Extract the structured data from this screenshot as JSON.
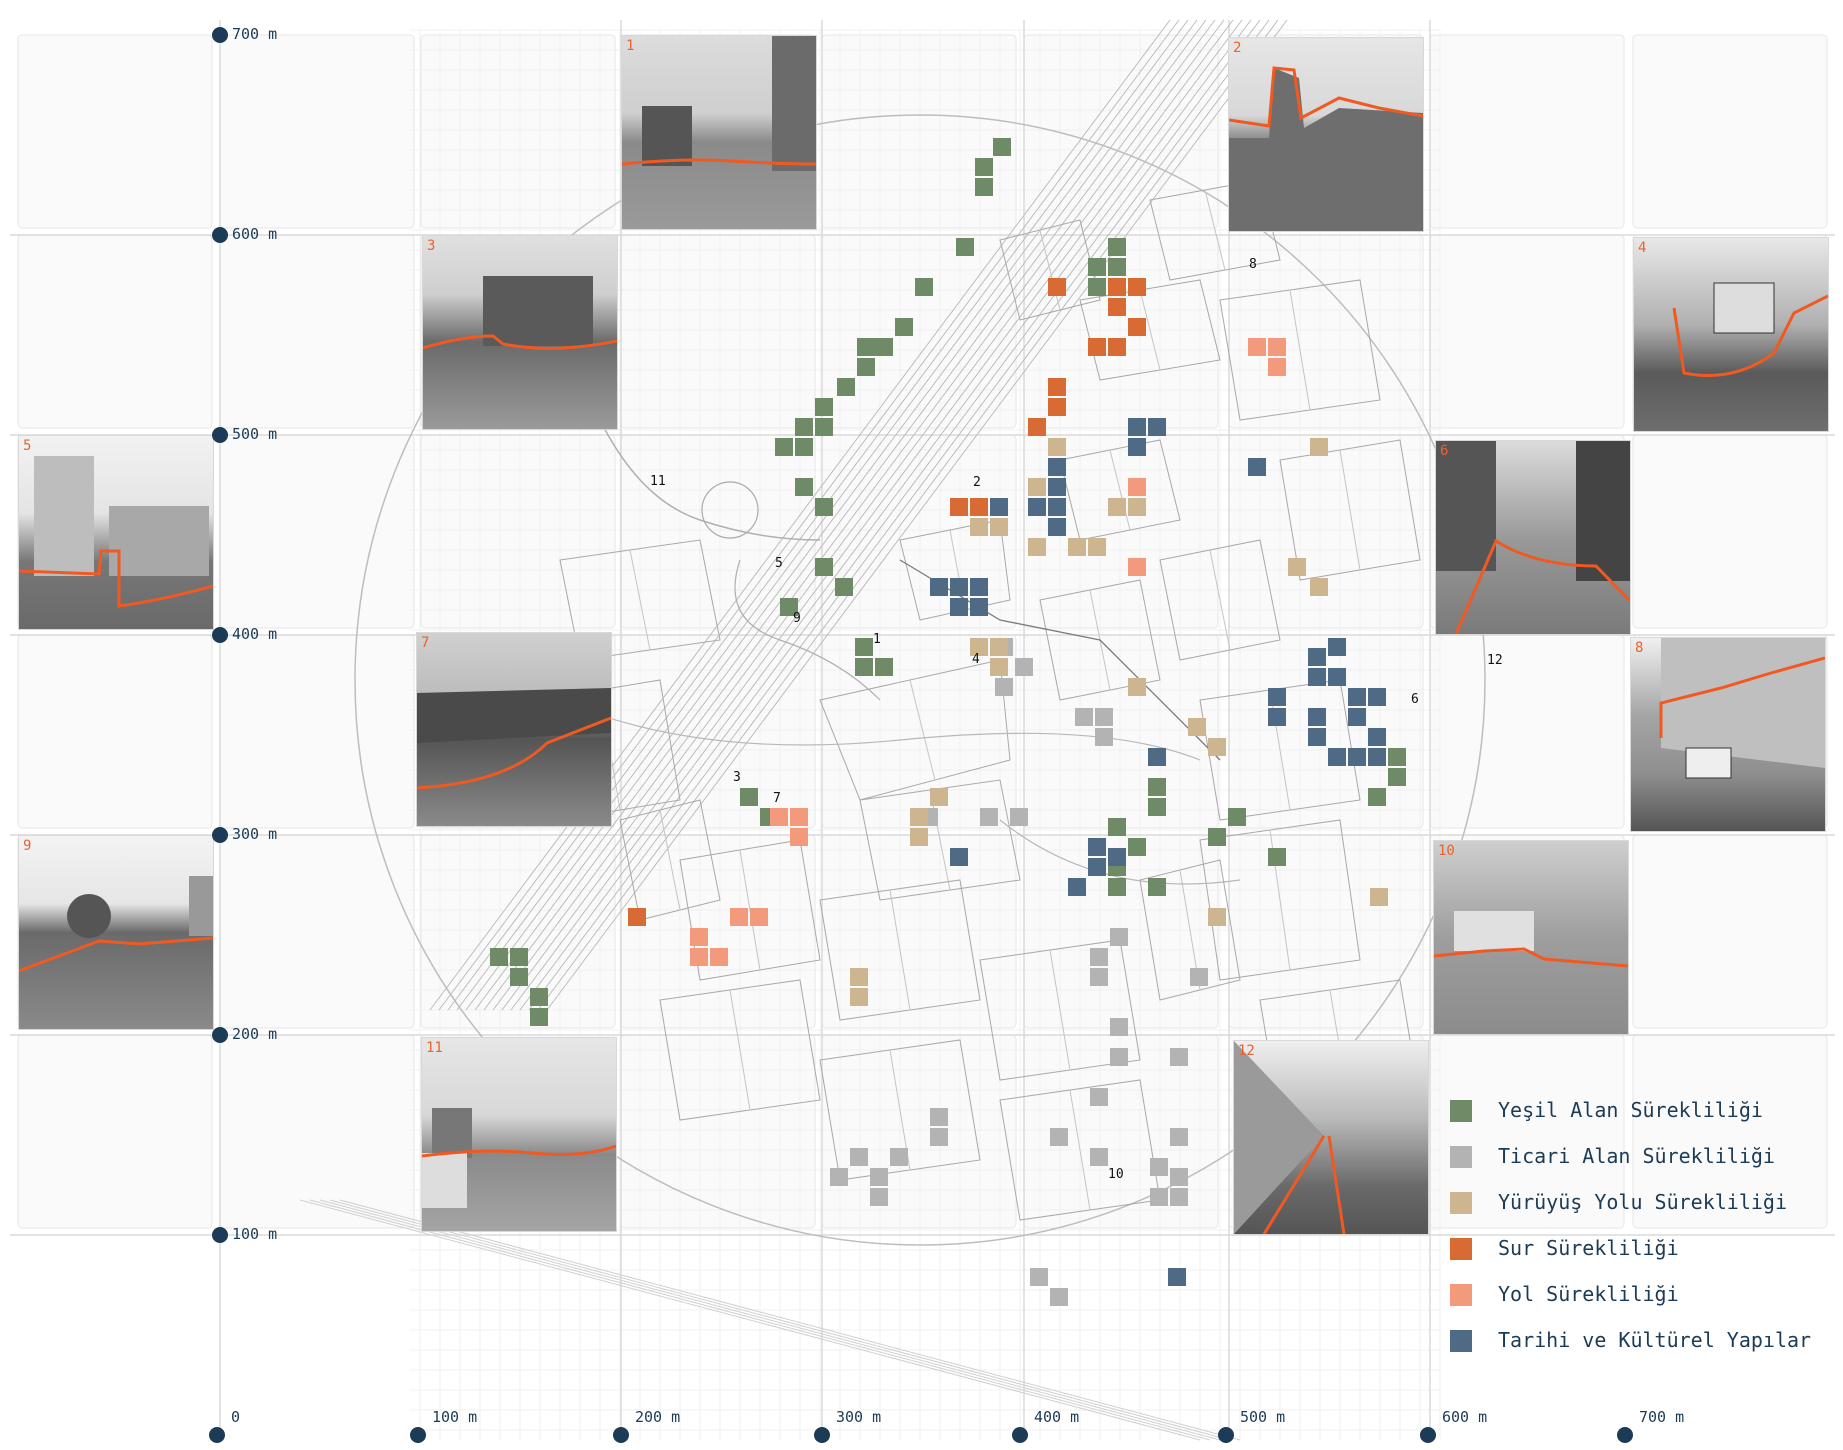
{
  "axes": {
    "y_labels": [
      "700 m",
      "600 m",
      "500 m",
      "400 m",
      "300 m",
      "200 m",
      "100 m"
    ],
    "x_labels": [
      "0",
      "100 m",
      "200 m",
      "300 m",
      "400 m",
      "500 m",
      "600 m",
      "700 m"
    ]
  },
  "photos": [
    "1",
    "2",
    "3",
    "4",
    "5",
    "6",
    "7",
    "8",
    "9",
    "10",
    "11",
    "12"
  ],
  "map_labels": [
    "1",
    "2",
    "3",
    "4",
    "5",
    "6",
    "7",
    "8",
    "9",
    "10",
    "11",
    "12"
  ],
  "legend": [
    {
      "label": "Yeşil Alan Sürekliliği",
      "color": "#6e8a66"
    },
    {
      "label": "Ticari Alan Sürekliliği",
      "color": "#b3b3b3"
    },
    {
      "label": "Yürüyüş Yolu Sürekliliği",
      "color": "#cdb68f"
    },
    {
      "label": "Sur Sürekliliği",
      "color": "#d86a34"
    },
    {
      "label": "Yol Sürekliliği",
      "color": "#f29a7b"
    },
    {
      "label": "Tarihi ve Kültürel Yapılar",
      "color": "#4f6a85"
    }
  ]
}
